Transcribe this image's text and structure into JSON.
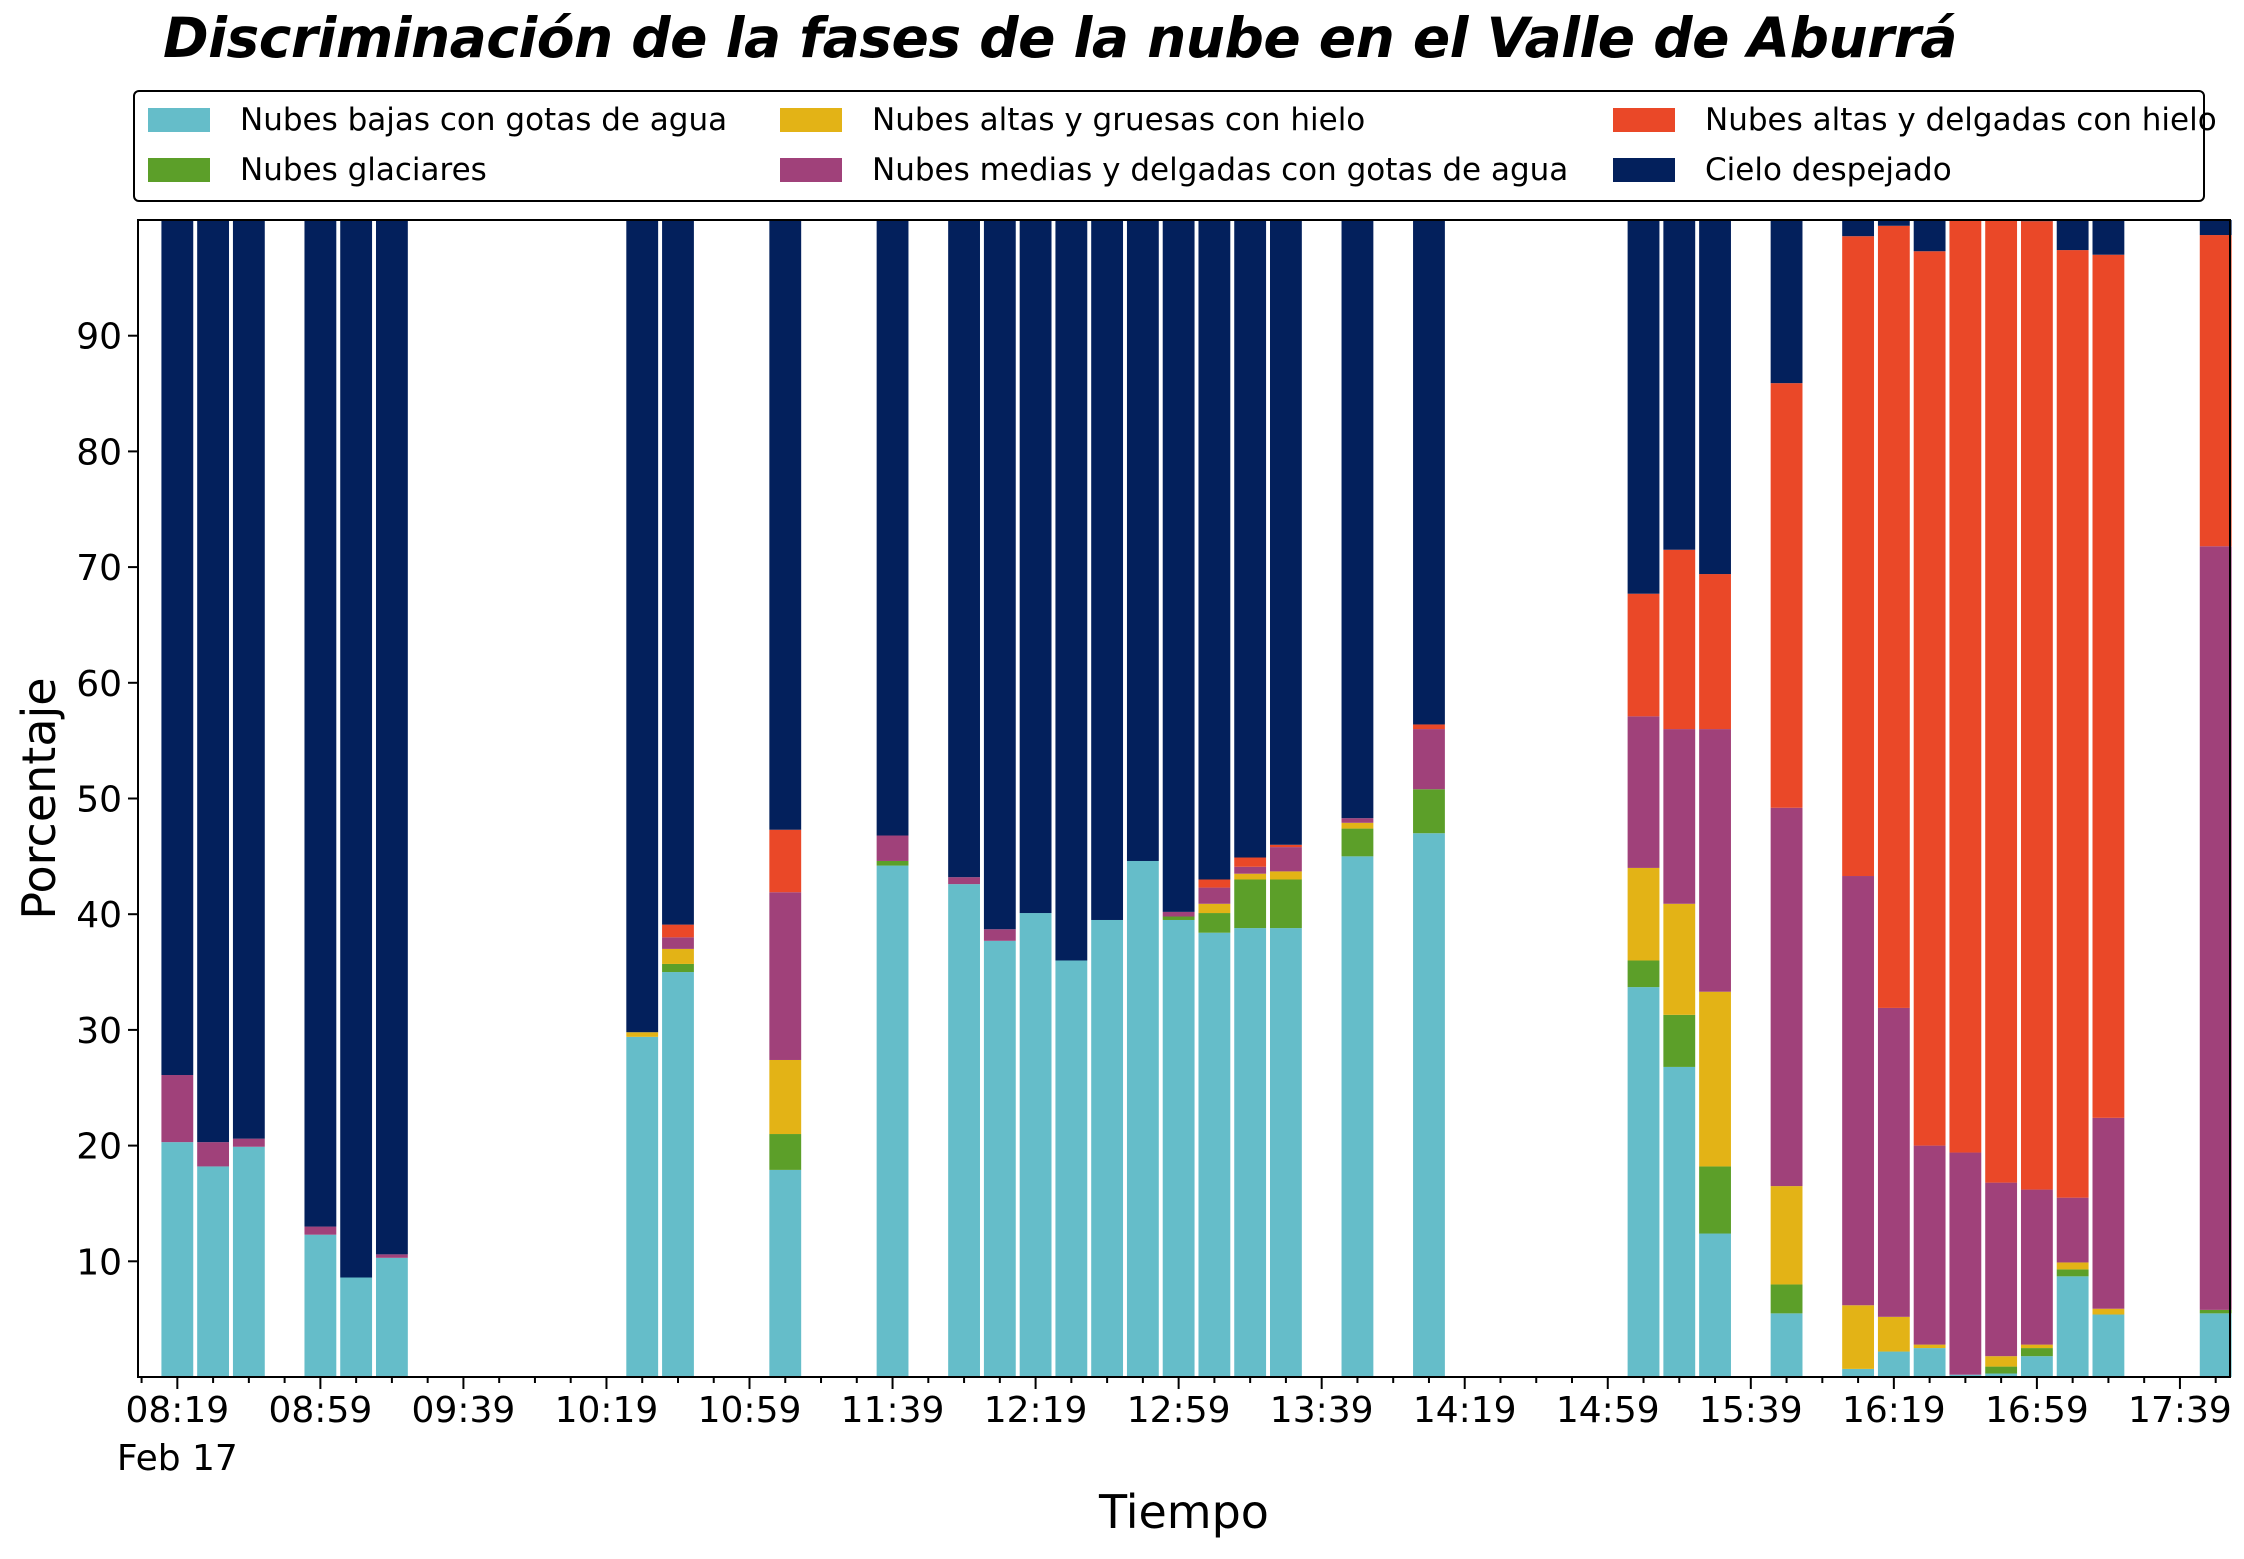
{
  "chart_data": {
    "type": "bar",
    "stacked": true,
    "title": "Discriminación de la fases de la nube en el Valle de Aburrá",
    "xlabel": "Tiempo",
    "ylabel": "Porcentaje",
    "ylim": [
      0,
      100
    ],
    "yticks": [
      10,
      20,
      30,
      40,
      50,
      60,
      70,
      80,
      90
    ],
    "xtick_labels": [
      "08:19",
      "08:59",
      "09:39",
      "10:19",
      "10:59",
      "11:39",
      "12:19",
      "12:59",
      "13:39",
      "14:19",
      "14:59",
      "15:39",
      "16:19",
      "16:59",
      "17:39"
    ],
    "xtick_values_min": [
      499,
      539,
      579,
      619,
      659,
      699,
      739,
      779,
      819,
      859,
      899,
      939,
      979,
      1019,
      1059
    ],
    "date_label": "Feb 17",
    "x_range_min": [
      488,
      1073
    ],
    "bar_width_min": 8.9,
    "legend_position": "top, 3 columns",
    "grid": false,
    "x_times": [
      "08:19",
      "08:29",
      "08:39",
      "08:59",
      "09:09",
      "09:19",
      "10:29",
      "10:39",
      "11:09",
      "11:39",
      "11:59",
      "12:09",
      "12:19",
      "12:29",
      "12:39",
      "12:49",
      "12:59",
      "13:09",
      "13:19",
      "13:29",
      "13:49",
      "14:09",
      "15:09",
      "15:19",
      "15:29",
      "15:49",
      "16:09",
      "16:19",
      "16:29",
      "16:39",
      "16:49",
      "16:59",
      "17:09",
      "17:19",
      "17:49"
    ],
    "x_minutes": [
      499,
      509,
      519,
      539,
      549,
      559,
      629,
      639,
      669,
      699,
      719,
      729,
      739,
      749,
      759,
      769,
      779,
      789,
      799,
      809,
      829,
      849,
      909,
      919,
      929,
      949,
      969,
      979,
      989,
      999,
      1009,
      1019,
      1029,
      1039,
      1069
    ],
    "series": [
      {
        "name": "Nubes bajas con gotas de agua",
        "color": "#65BDC9",
        "values": [
          20.3,
          18.2,
          19.9,
          12.3,
          8.6,
          10.3,
          29.4,
          35.0,
          17.9,
          44.2,
          42.6,
          37.7,
          40.1,
          36.0,
          39.5,
          44.6,
          39.5,
          38.4,
          38.8,
          38.8,
          45.0,
          47.0,
          33.7,
          26.8,
          12.4,
          5.5,
          0.7,
          2.2,
          2.5,
          0.2,
          0.3,
          1.8,
          8.7,
          5.4,
          5.5
        ]
      },
      {
        "name": "Nubes glaciares",
        "color": "#5C9F29",
        "values": [
          0,
          0,
          0,
          0,
          0,
          0,
          0,
          0.7,
          3.1,
          0.4,
          0,
          0,
          0,
          0,
          0,
          0,
          0.3,
          1.7,
          4.2,
          4.2,
          2.4,
          3.8,
          2.3,
          4.5,
          5.8,
          2.5,
          0,
          0,
          0,
          0,
          0.6,
          0.7,
          0.6,
          0,
          0.3
        ]
      },
      {
        "name": "Nubes altas y gruesas con hielo",
        "color": "#E3B316",
        "values": [
          0,
          0,
          0,
          0,
          0,
          0,
          0.4,
          1.3,
          6.4,
          0,
          0,
          0,
          0,
          0,
          0,
          0,
          0,
          0.8,
          0.5,
          0.7,
          0.5,
          0,
          8.0,
          9.6,
          15.1,
          8.5,
          5.5,
          3.0,
          0.3,
          0,
          0.9,
          0.3,
          0.6,
          0.5,
          0
        ]
      },
      {
        "name": "Nubes medias y delgadas con gotas de agua",
        "color": "#A0417A",
        "values": [
          5.8,
          2.1,
          0.7,
          0.7,
          0,
          0.3,
          0,
          1.0,
          14.5,
          2.2,
          0.6,
          1.0,
          0,
          0,
          0,
          0,
          0.4,
          1.4,
          0.6,
          2.1,
          0.4,
          5.2,
          13.1,
          15.1,
          22.7,
          32.7,
          37.1,
          26.7,
          17.2,
          19.2,
          15.0,
          13.4,
          5.6,
          16.5,
          66.0
        ]
      },
      {
        "name": "Nubes altas y delgadas con hielo",
        "color": "#EA4828",
        "values": [
          0,
          0,
          0,
          0,
          0,
          0,
          0,
          1.1,
          5.4,
          0,
          0,
          0,
          0,
          0,
          0,
          0,
          0,
          0.7,
          0.8,
          0.2,
          0,
          0.4,
          10.6,
          15.5,
          13.4,
          36.7,
          55.3,
          67.6,
          77.3,
          80.6,
          83.2,
          83.7,
          81.9,
          74.6,
          26.9
        ]
      },
      {
        "name": "Cielo despejado",
        "color": "#03205C",
        "values": [
          73.9,
          79.7,
          79.4,
          87.0,
          91.4,
          89.4,
          70.2,
          60.9,
          52.7,
          53.2,
          56.8,
          61.3,
          59.9,
          64.0,
          60.5,
          55.4,
          59.8,
          57.0,
          55.1,
          54.0,
          51.7,
          43.6,
          32.3,
          28.5,
          30.6,
          14.1,
          1.4,
          0.5,
          2.7,
          0,
          0,
          0.1,
          2.6,
          3.0,
          1.3
        ]
      }
    ]
  }
}
